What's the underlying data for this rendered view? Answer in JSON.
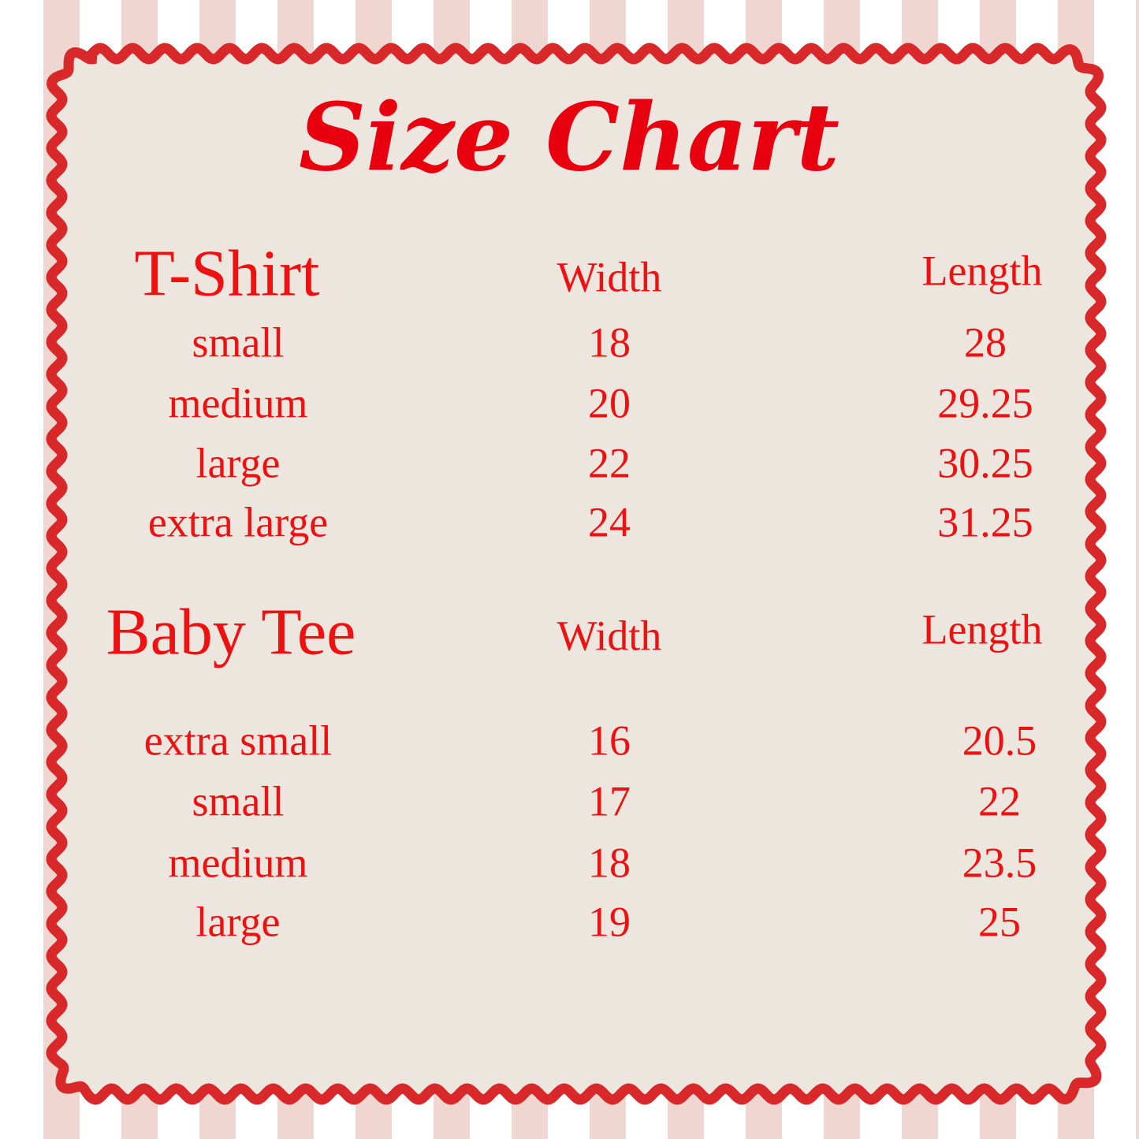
{
  "title": "Size Chart",
  "tables": [
    {
      "name": "T-Shirt",
      "columns": [
        "Width",
        "Length"
      ],
      "rows": [
        [
          "small",
          18,
          28
        ],
        [
          "medium",
          20,
          29.25
        ],
        [
          "large",
          22,
          30.25
        ],
        [
          "extra large",
          24,
          31.25
        ]
      ]
    },
    {
      "name": "Baby Tee",
      "columns": [
        "Width",
        "Length"
      ],
      "rows": [
        [
          "extra small",
          16,
          20.5
        ],
        [
          "small",
          17,
          22
        ],
        [
          "medium",
          18,
          23.5
        ],
        [
          "large",
          19,
          25
        ]
      ]
    }
  ]
}
